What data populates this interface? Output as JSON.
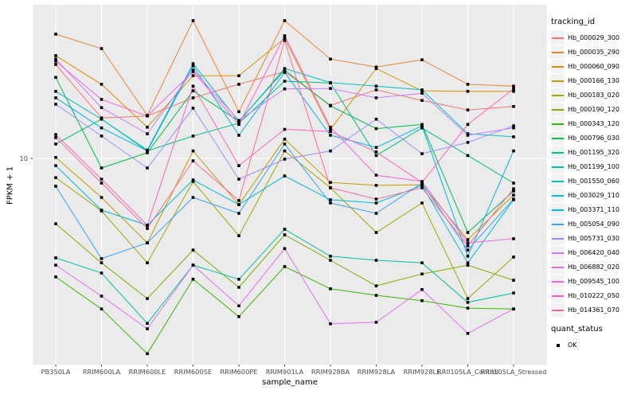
{
  "figure": {
    "panel_bg": "#EBEBEB",
    "grid_color": "#FFFFFF",
    "point_color": "#000000",
    "tick_label_color": "#4D4D4D"
  },
  "axes": {
    "x": {
      "title": "sample_name"
    },
    "y": {
      "title": "FPKM + 1",
      "scale": "log10",
      "ticks": [
        {
          "label": "10",
          "value": 10
        }
      ]
    }
  },
  "legend": {
    "tracking": {
      "title": "tracking_id"
    },
    "quant": {
      "title": "quant_status",
      "entries": [
        {
          "label": "OK",
          "shape": "square"
        }
      ]
    }
  },
  "chart_data": {
    "type": "line",
    "title": "",
    "xlabel": "sample_name",
    "ylabel": "FPKM + 1",
    "yscale": "log10",
    "ylim": [
      1.25,
      45
    ],
    "grid": "major",
    "legend_position": "right",
    "point_marker": "filled-black-square (quant_status = OK)",
    "categories": [
      "PB350LA",
      "RRIM600LA",
      "RRIM600LE",
      "RRIM600SE",
      "RRIM600PE",
      "RRIM901LA",
      "RRIM928BA",
      "RRIM928LA",
      "RRIM928LE",
      "RRII105LA_Control",
      "RRII105LA_Stressed"
    ],
    "series": [
      {
        "name": "Hb_000029_300",
        "color": "#F8766D",
        "values": [
          26.4,
          15.2,
          15.5,
          18.7,
          21.5,
          24.5,
          17.3,
          20.3,
          18.2,
          16.5,
          17.1
        ]
      },
      {
        "name": "Hb_000035_290",
        "color": "#EA8331",
        "values": [
          36.1,
          31.1,
          15.6,
          41.5,
          16.2,
          41.5,
          27.9,
          25.7,
          27.7,
          21.5,
          21.1
        ]
      },
      {
        "name": "Hb_000060_090",
        "color": "#D89000",
        "values": [
          28.9,
          21.5,
          13.8,
          23.5,
          23.5,
          34.6,
          13.5,
          25.3,
          20.1,
          20.0,
          20.0
        ]
      },
      {
        "name": "Hb_000166_130",
        "color": "#C09B00",
        "values": [
          10.1,
          6.68,
          4.18,
          10.8,
          6.2,
          12.2,
          7.8,
          7.57,
          7.62,
          4.32,
          6.85
        ]
      },
      {
        "name": "Hb_000183_020",
        "color": "#A3A500",
        "values": [
          8.2,
          5.81,
          3.4,
          7.88,
          4.5,
          10.8,
          7.38,
          4.65,
          6.31,
          2.35,
          3.61
        ]
      },
      {
        "name": "Hb_000190_120",
        "color": "#7CAE00",
        "values": [
          5.09,
          3.4,
          2.35,
          3.88,
          2.64,
          4.54,
          3.49,
          2.68,
          3.03,
          3.32,
          2.84
        ]
      },
      {
        "name": "Hb_000343_120",
        "color": "#39B600",
        "values": [
          2.94,
          2.11,
          1.33,
          2.87,
          1.95,
          3.27,
          2.6,
          2.43,
          2.3,
          2.13,
          2.11
        ]
      },
      {
        "name": "Hb_000796_030",
        "color": "#00BB4E",
        "values": [
          23.1,
          9.06,
          10.6,
          20.1,
          14.7,
          24.9,
          17.2,
          13.6,
          14.2,
          4.65,
          7.14
        ]
      },
      {
        "name": "Hb_001195_320",
        "color": "#00BF7D",
        "values": [
          11.6,
          15.0,
          10.8,
          12.6,
          14.4,
          22.2,
          21.8,
          10.3,
          13.7,
          10.3,
          7.75
        ]
      },
      {
        "name": "Hb_001199_100",
        "color": "#00C1A3",
        "values": [
          3.58,
          3.06,
          1.82,
          3.32,
          2.87,
          4.81,
          3.64,
          3.49,
          3.4,
          2.26,
          2.49
        ]
      },
      {
        "name": "Hb_001550_060",
        "color": "#00BFC4",
        "values": [
          20.0,
          15.0,
          10.9,
          26.6,
          14.6,
          25.3,
          21.9,
          21.1,
          20.3,
          12.9,
          12.5
        ]
      },
      {
        "name": "Hb_003029_110",
        "color": "#00BBDA",
        "values": [
          9.28,
          5.86,
          5.01,
          8.01,
          6.2,
          8.34,
          6.52,
          6.31,
          7.57,
          3.4,
          6.52
        ]
      },
      {
        "name": "Hb_003371_110",
        "color": "#00B0F6",
        "values": [
          18.7,
          13.7,
          10.8,
          26.0,
          12.7,
          24.3,
          12.7,
          11.2,
          14.0,
          3.64,
          10.8
        ]
      },
      {
        "name": "Hb_005054_090",
        "color": "#35A2FF",
        "values": [
          7.5,
          3.55,
          4.18,
          6.68,
          5.67,
          11.6,
          6.31,
          5.67,
          7.75,
          3.88,
          6.57
        ]
      },
      {
        "name": "Hb_005731_030",
        "color": "#9590FF",
        "values": [
          17.5,
          12.6,
          9.06,
          16.8,
          8.07,
          9.92,
          10.8,
          15.0,
          10.5,
          11.8,
          14.0
        ]
      },
      {
        "name": "Hb_006420_040",
        "color": "#C77CFF",
        "values": [
          27.9,
          16.9,
          12.9,
          24.9,
          14.8,
          20.5,
          20.6,
          18.7,
          19.6,
          12.7,
          13.7
        ]
      },
      {
        "name": "Hb_006882_020",
        "color": "#E76BF3",
        "values": [
          3.32,
          2.41,
          1.72,
          3.32,
          2.18,
          3.94,
          1.81,
          1.84,
          2.58,
          1.64,
          2.11
        ]
      },
      {
        "name": "Hb_009545_100",
        "color": "#FA62DB",
        "values": [
          27.3,
          18.4,
          15.5,
          24.5,
          14.2,
          35.5,
          13.8,
          8.41,
          7.88,
          4.18,
          4.36
        ]
      },
      {
        "name": "Hb_010222_050",
        "color": "#FF62BC",
        "values": [
          12.8,
          8.07,
          5.01,
          21.1,
          9.28,
          13.5,
          13.2,
          10.7,
          7.8,
          14.2,
          20.5
        ]
      },
      {
        "name": "Hb_014361_070",
        "color": "#FF6A98",
        "values": [
          12.4,
          7.75,
          4.85,
          9.75,
          6.47,
          33.8,
          7.38,
          6.57,
          7.38,
          4.05,
          7.31
        ]
      }
    ]
  }
}
